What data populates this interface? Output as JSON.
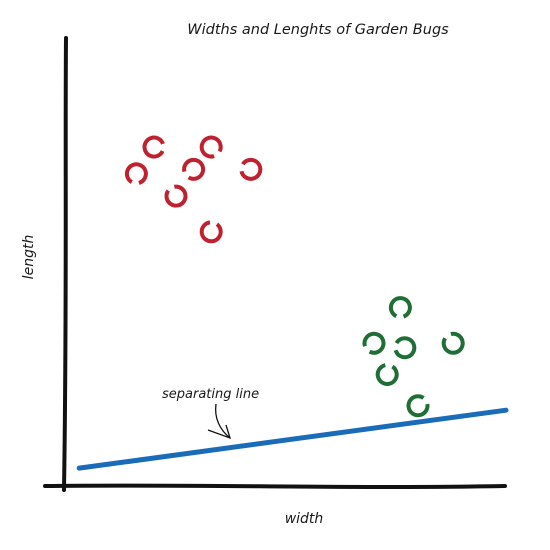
{
  "chart_data": {
    "type": "scatter",
    "title": "Widths and Lenghts of Garden Bugs",
    "xlabel": "width",
    "ylabel": "length",
    "grid": false,
    "legend": "none",
    "xlim": [
      0,
      10
    ],
    "ylim": [
      0,
      10
    ],
    "series": [
      {
        "color": "#c0212f",
        "marker": "open-circle",
        "points": [
          {
            "x": 2.0,
            "y": 7.6
          },
          {
            "x": 3.3,
            "y": 7.6
          },
          {
            "x": 1.6,
            "y": 7.0
          },
          {
            "x": 2.9,
            "y": 7.1
          },
          {
            "x": 4.2,
            "y": 7.1
          },
          {
            "x": 2.5,
            "y": 6.5
          },
          {
            "x": 3.3,
            "y": 5.7
          }
        ]
      },
      {
        "color": "#1f6e35",
        "marker": "open-circle",
        "points": [
          {
            "x": 7.6,
            "y": 4.0
          },
          {
            "x": 7.0,
            "y": 3.2
          },
          {
            "x": 7.7,
            "y": 3.1
          },
          {
            "x": 8.8,
            "y": 3.2
          },
          {
            "x": 7.3,
            "y": 2.5
          },
          {
            "x": 8.0,
            "y": 1.8
          }
        ]
      }
    ],
    "separator": {
      "color": "#1b6cb8",
      "from": {
        "x": 0.3,
        "y": 0.4
      },
      "to": {
        "x": 10.0,
        "y": 1.7
      }
    },
    "annotation": {
      "text": "separating line"
    },
    "axis_color": "#111111"
  }
}
